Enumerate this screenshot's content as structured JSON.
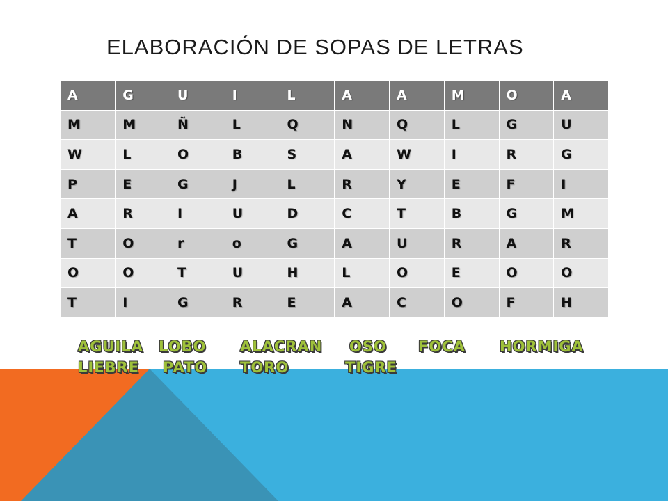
{
  "title": "ELABORACIÓN DE SOPAS DE LETRAS",
  "grid": [
    [
      "A",
      "G",
      "U",
      "I",
      "L",
      "A",
      "A",
      "M",
      "O",
      "A"
    ],
    [
      "M",
      "M",
      "Ñ",
      "L",
      "Q",
      "N",
      "Q",
      "L",
      "G",
      "U"
    ],
    [
      "W",
      "L",
      "O",
      "B",
      "S",
      "A",
      "W",
      "I",
      "R",
      "G"
    ],
    [
      "P",
      "E",
      "G",
      "J",
      "L",
      "R",
      "Y",
      "E",
      "F",
      "I"
    ],
    [
      "A",
      "R",
      "I",
      "U",
      "D",
      "C",
      "T",
      "B",
      "G",
      "M"
    ],
    [
      "T",
      "O",
      "r",
      "o",
      "G",
      "A",
      "U",
      "R",
      "A",
      "R"
    ],
    [
      "O",
      "O",
      "T",
      "U",
      "H",
      "L",
      "O",
      "E",
      "O",
      "O"
    ],
    [
      "T",
      "I",
      "G",
      "R",
      "E",
      "A",
      "C",
      "O",
      "F",
      "H"
    ]
  ],
  "words": [
    "AGUILA",
    "LOBO",
    "ALACRAN",
    "OSO",
    "FOCA",
    "HORMIGA",
    "LIEBRE",
    "PATO",
    "TORO",
    "TIGRE"
  ],
  "colors": {
    "header_row": "#7a7a7a",
    "row_dark": "#cfcfcf",
    "row_light": "#e8e8e8",
    "word_text": "#9fc13a",
    "accent_orange": "#f26b21",
    "accent_blue": "#3bb0de",
    "accent_teal": "#3a93b6"
  }
}
